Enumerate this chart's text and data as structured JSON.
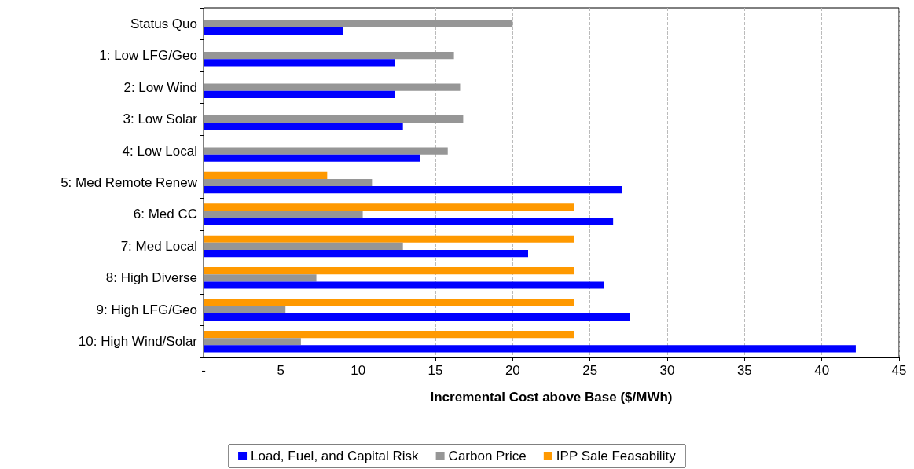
{
  "chart_data": {
    "type": "bar",
    "orientation": "horizontal",
    "xlabel": "Incremental Cost above Base ($/MWh)",
    "categories": [
      "Status Quo",
      "1: Low LFG/Geo",
      "2: Low Wind",
      "3: Low Solar",
      "4: Low Local",
      "5: Med Remote Renew",
      "6: Med CC",
      "7: Med Local",
      "8: High Diverse",
      "9: High LFG/Geo",
      "10: High Wind/Solar"
    ],
    "series": [
      {
        "name": "Load, Fuel, and Capital Risk",
        "color": "#0000ff",
        "values": [
          9.0,
          12.4,
          12.4,
          12.9,
          14.0,
          27.1,
          26.5,
          21.0,
          25.9,
          27.6,
          42.2
        ]
      },
      {
        "name": "Carbon Price",
        "color": "#969696",
        "values": [
          20.0,
          16.2,
          16.6,
          16.8,
          15.8,
          10.9,
          10.3,
          12.9,
          7.3,
          5.3,
          6.3
        ]
      },
      {
        "name": "IPP Sale Feasability",
        "color": "#ff9900",
        "values": [
          null,
          null,
          null,
          null,
          null,
          8.0,
          24.0,
          24.0,
          24.0,
          24.0,
          24.0
        ]
      }
    ],
    "xlim": [
      0,
      45
    ],
    "xticks": [
      {
        "value": 0,
        "label": "-"
      },
      5,
      10,
      15,
      20,
      25,
      30,
      35,
      40,
      45
    ],
    "grid": "x",
    "legend": "bottom"
  }
}
